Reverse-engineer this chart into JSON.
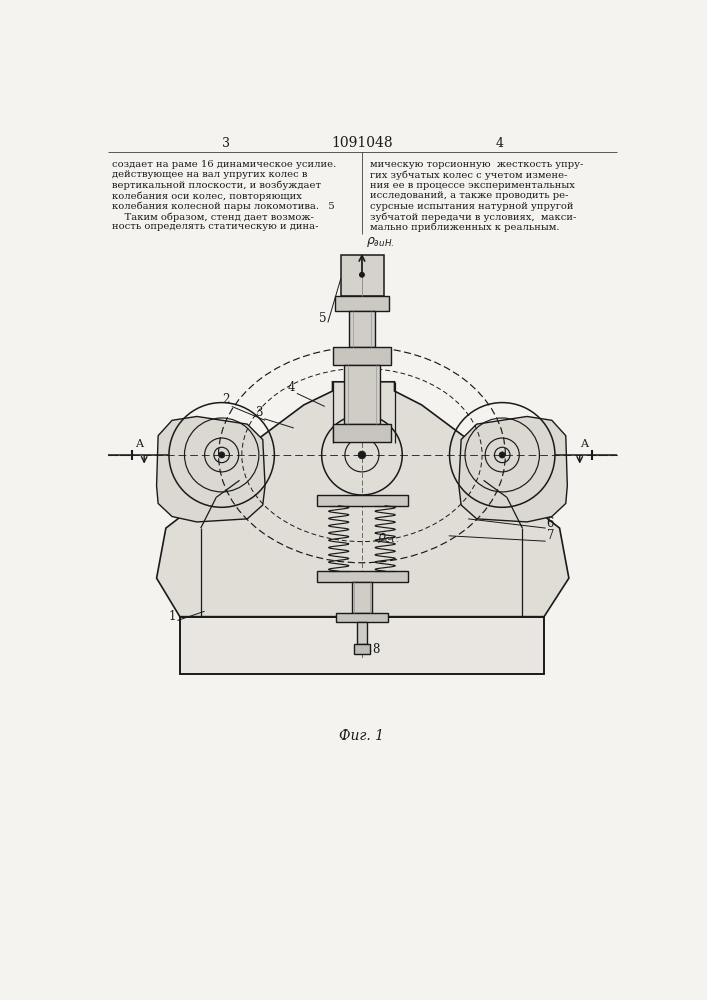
{
  "bg_color": "#f5f3f0",
  "line_color": "#1a1a1a",
  "title_text": "1091048",
  "page_left": "3",
  "page_right": "4",
  "fig_caption": "Фиг. 1",
  "text_left": [
    "создает на раме 16 динамическое усилие.",
    "действующее на вал упругих колес в",
    "вертикальной плоскости, и возбуждает",
    "колебания оси колес, повторяющих",
    "колебания колесной пары локомотива.   5",
    "    Таким образом, стенд дает возмож-",
    "ность определять статическую и дина-"
  ],
  "text_right": [
    "мическую торсионную  жесткость упру-",
    "гих зубчатых колес с учетом измене-",
    "ния ее в процессе экспериментальных",
    "исследований, а также проводить ре-",
    "сурсные испытания натурной упругой",
    "зубчатой передачи в условиях,  макси-",
    "мально приближенных к реальным."
  ]
}
